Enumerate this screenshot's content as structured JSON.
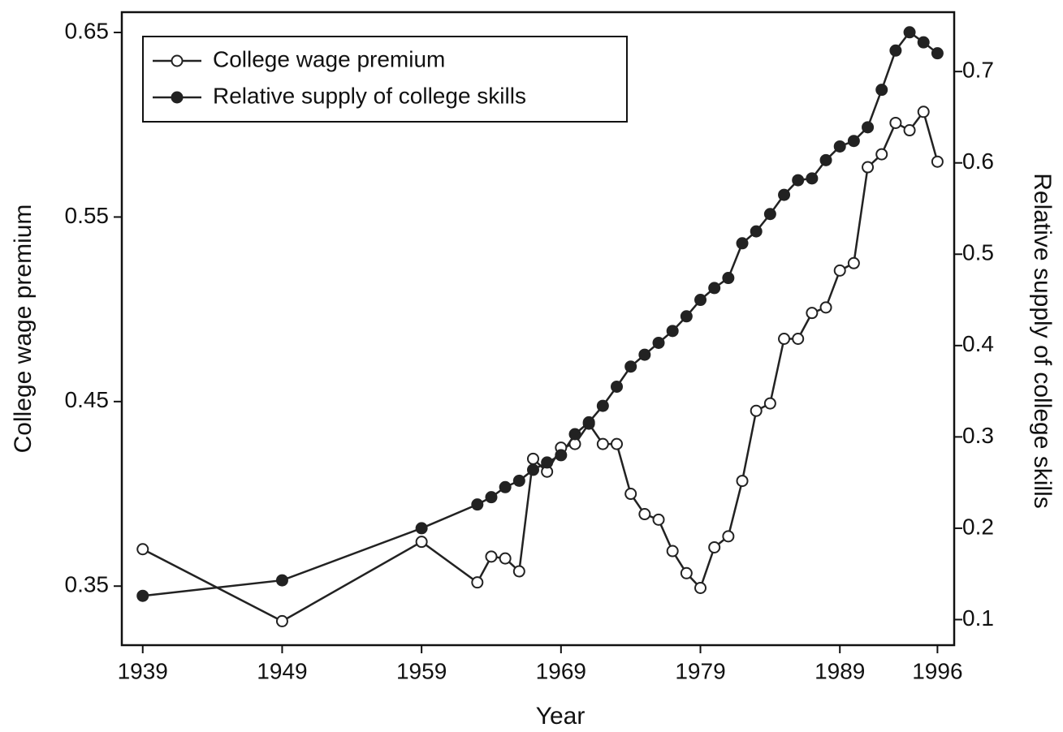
{
  "chart_data": {
    "type": "line",
    "xlabel": "Year",
    "ylabel": "College wage premium",
    "y2label": "Relative supply of college skills",
    "x": [
      1939,
      1949,
      1959,
      1963,
      1964,
      1965,
      1966,
      1967,
      1968,
      1969,
      1970,
      1971,
      1972,
      1973,
      1974,
      1975,
      1976,
      1977,
      1978,
      1979,
      1980,
      1981,
      1982,
      1983,
      1984,
      1985,
      1986,
      1987,
      1988,
      1989,
      1990,
      1991,
      1992,
      1993,
      1994,
      1995,
      1996
    ],
    "series": [
      {
        "name": "College wage premium",
        "color": "#222222",
        "marker": "open",
        "values": [
          0.37,
          0.331,
          0.374,
          0.352,
          0.366,
          0.365,
          0.358,
          0.419,
          0.412,
          0.425,
          0.427,
          0.438,
          0.427,
          0.427,
          0.4,
          0.389,
          0.386,
          0.369,
          0.357,
          0.349,
          0.371,
          0.377,
          0.407,
          0.445,
          0.449,
          0.484,
          0.484,
          0.498,
          0.501,
          0.521,
          0.525,
          0.577,
          0.584,
          0.601,
          0.597,
          0.607,
          0.58
        ]
      },
      {
        "name": "Relative supply of college skills",
        "color": "#222222",
        "marker": "filled",
        "axis": "y2",
        "values": [
          0.126,
          0.143,
          0.2,
          0.226,
          0.234,
          0.245,
          0.252,
          0.264,
          0.272,
          0.28,
          0.303,
          0.316,
          0.334,
          0.355,
          0.377,
          0.39,
          0.403,
          0.416,
          0.432,
          0.45,
          0.463,
          0.474,
          0.512,
          0.525,
          0.544,
          0.565,
          0.581,
          0.583,
          0.603,
          0.618,
          0.624,
          0.639,
          0.68,
          0.723,
          0.743,
          0.732,
          0.72
        ]
      }
    ],
    "xlim": [
      1937.5,
      1997.2
    ],
    "xticks": [
      1939,
      1949,
      1959,
      1969,
      1979,
      1989,
      1996
    ],
    "ylim": [
      0.318,
      0.661
    ],
    "yticks": [
      0.35,
      0.45,
      0.55,
      0.65
    ],
    "y2lim": [
      0.072,
      0.765
    ],
    "y2ticks": [
      0.1,
      0.2,
      0.3,
      0.4,
      0.5,
      0.6,
      0.7
    ],
    "legend": "upper left",
    "grid": false
  }
}
